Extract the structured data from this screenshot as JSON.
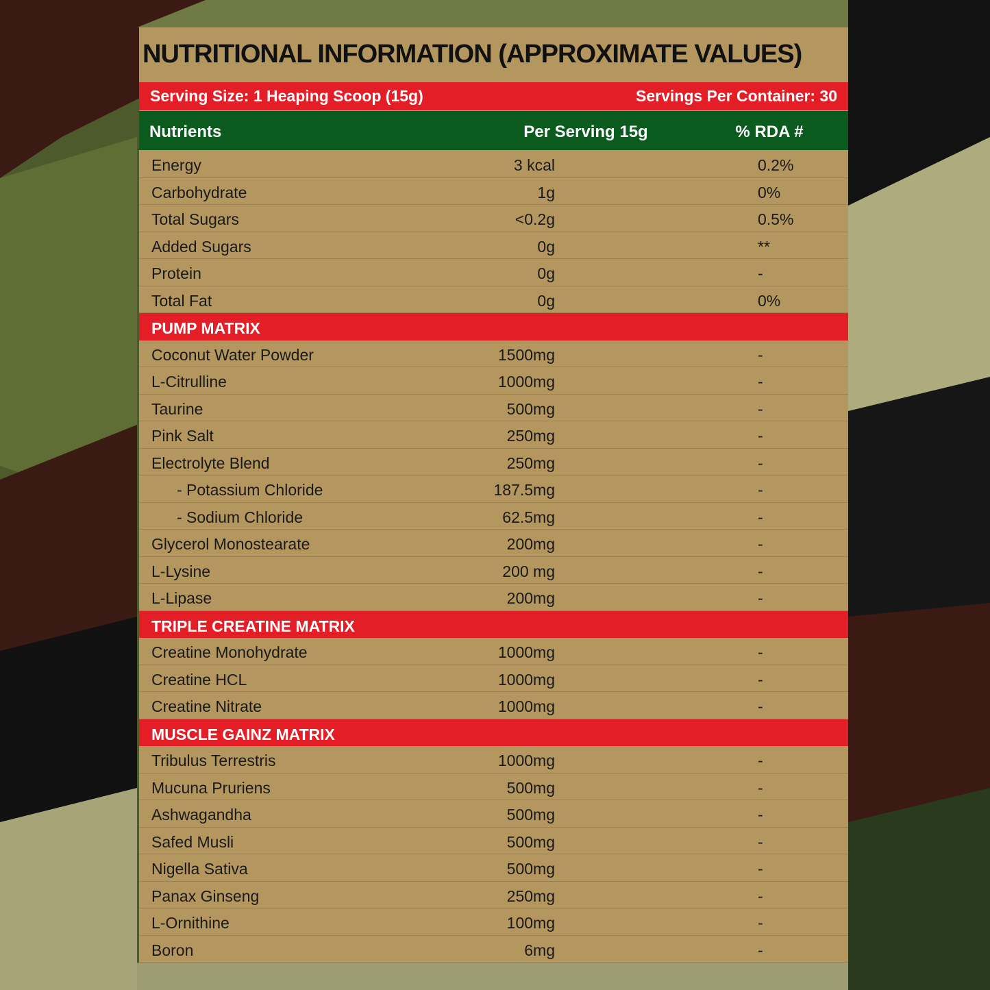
{
  "title": "NUTRITIONAL INFORMATION (APPROXIMATE VALUES)",
  "serving_size": "Serving Size: 1 Heaping Scoop (15g)",
  "servings_per_container": "Servings Per Container: 30",
  "header": [
    "Nutrients",
    "Per Serving 15g",
    "% RDA #"
  ],
  "nutrients": [
    [
      "Energy",
      "3 kcal",
      "0.2%"
    ],
    [
      "Carbohydrate",
      "1g",
      "0%"
    ],
    [
      "Total Sugars",
      "<0.2g",
      "0.5%"
    ],
    [
      "Added Sugars",
      "0g",
      "**"
    ],
    [
      "Protein",
      "0g",
      "-"
    ],
    [
      "Total Fat",
      "0g",
      "0%"
    ]
  ],
  "sections": [
    {
      "title": "PUMP MATRIX",
      "rows": [
        [
          "Coconut Water Powder",
          "1500mg",
          "-"
        ],
        [
          "L-Citrulline",
          "1000mg",
          "-"
        ],
        [
          "Taurine",
          "500mg",
          "-"
        ],
        [
          "Pink Salt",
          "250mg",
          "-"
        ],
        [
          "Electrolyte Blend",
          "250mg",
          "-"
        ],
        [
          "- Potassium Chloride",
          "187.5mg",
          "-"
        ],
        [
          "- Sodium Chloride",
          "62.5mg",
          "-"
        ],
        [
          "Glycerol Monostearate",
          "200mg",
          "-"
        ],
        [
          "L-Lysine",
          "200 mg",
          "-"
        ],
        [
          "L-Lipase",
          "200mg",
          "-"
        ]
      ]
    },
    {
      "title": "TRIPLE CREATINE MATRIX",
      "rows": [
        [
          "Creatine Monohydrate",
          "1000mg",
          "-"
        ],
        [
          "Creatine HCL",
          "1000mg",
          "-"
        ],
        [
          "Creatine Nitrate",
          "1000mg",
          "-"
        ]
      ]
    },
    {
      "title": "MUSCLE GAINZ MATRIX",
      "rows": [
        [
          "Tribulus Terrestris",
          "1000mg",
          "-"
        ],
        [
          "Mucuna Pruriens",
          "500mg",
          "-"
        ],
        [
          "Ashwagandha",
          "500mg",
          "-"
        ],
        [
          "Safed Musli",
          "500mg",
          "-"
        ],
        [
          "Nigella Sativa",
          "500mg",
          "-"
        ],
        [
          "Panax Ginseng",
          "250mg",
          "-"
        ],
        [
          "L-Ornithine",
          "100mg",
          "-"
        ],
        [
          "Boron",
          "6mg",
          "-"
        ]
      ]
    }
  ]
}
